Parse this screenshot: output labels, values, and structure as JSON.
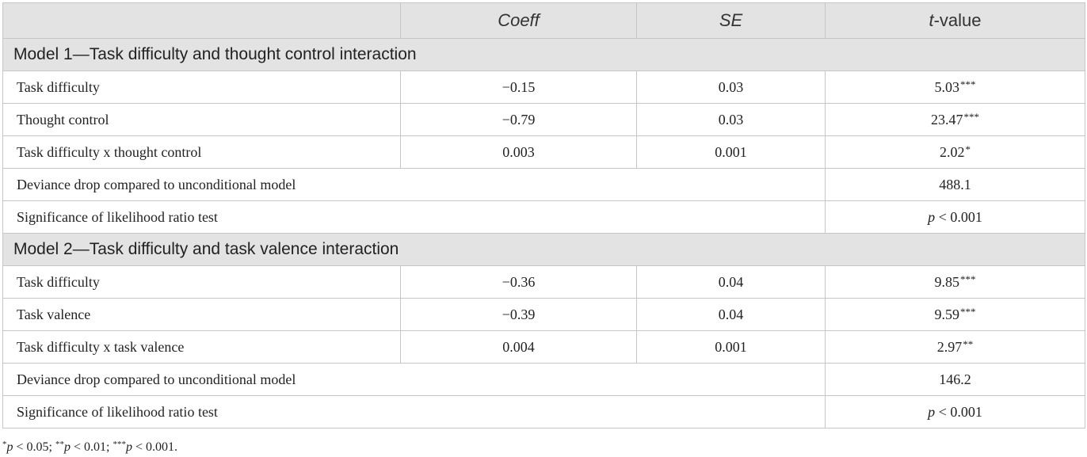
{
  "table": {
    "header": {
      "label": "",
      "coeff": "Coeff",
      "se": "SE",
      "t_italic": "t",
      "t_rest": "-value"
    },
    "sections": [
      {
        "title": "Model 1—Task difficulty and thought control interaction",
        "rows": [
          {
            "label": "Task difficulty",
            "coeff": "−0.15",
            "se": "0.03",
            "t": "5.03",
            "sig": "***"
          },
          {
            "label": "Thought control",
            "coeff": "−0.79",
            "se": "0.03",
            "t": "23.47",
            "sig": "***"
          },
          {
            "label": "Task difficulty x thought control",
            "coeff": "0.003",
            "se": "0.001",
            "t": "2.02",
            "sig": "*"
          }
        ],
        "deviance": {
          "label": "Deviance drop compared to unconditional model",
          "value": "488.1"
        },
        "lrt": {
          "label": "Significance of likelihood ratio test",
          "p": "p",
          "rest": " < 0.001"
        }
      },
      {
        "title": "Model 2—Task difficulty and task valence interaction",
        "rows": [
          {
            "label": "Task difficulty",
            "coeff": "−0.36",
            "se": "0.04",
            "t": "9.85",
            "sig": "***"
          },
          {
            "label": "Task valence",
            "coeff": "−0.39",
            "se": "0.04",
            "t": "9.59",
            "sig": "***"
          },
          {
            "label": "Task difficulty x task valence",
            "coeff": "0.004",
            "se": "0.001",
            "t": "2.97",
            "sig": "**"
          }
        ],
        "deviance": {
          "label": "Deviance drop compared to unconditional model",
          "value": "146.2"
        },
        "lrt": {
          "label": "Significance of likelihood ratio test",
          "p": "p",
          "rest": " < 0.001"
        }
      }
    ]
  },
  "footnote": {
    "s1": "*",
    "p1": "p",
    "t1": " < 0.05; ",
    "s2": "**",
    "p2": "p",
    "t2": " < 0.01; ",
    "s3": "***",
    "p3": "p",
    "t3": " < 0.001."
  }
}
